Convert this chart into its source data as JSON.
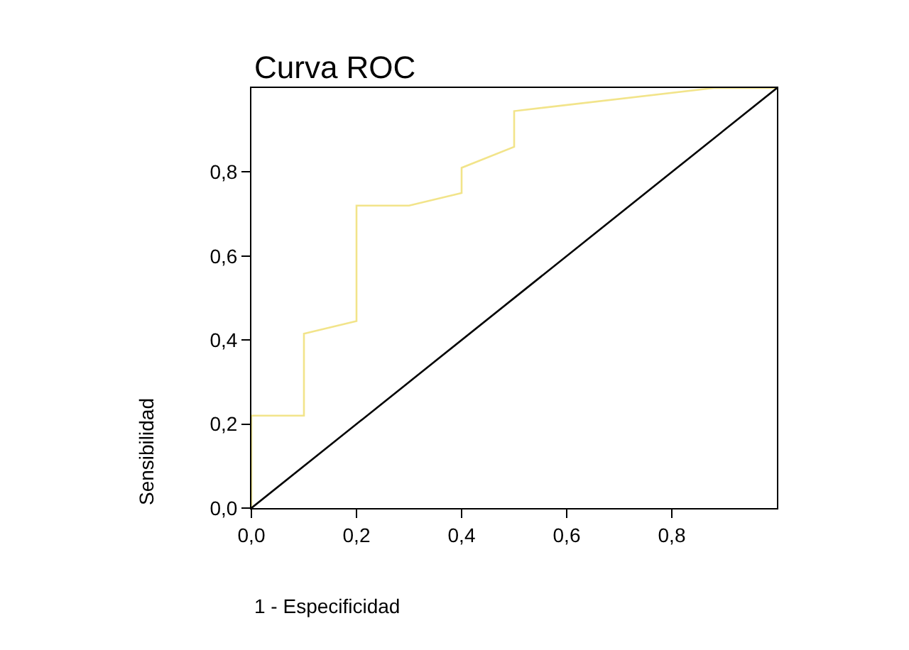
{
  "chart_data": {
    "type": "line",
    "title": "Curva ROC",
    "xlabel": "1 - Especificidad",
    "ylabel": "Sensibilidad",
    "xlim": [
      0,
      1
    ],
    "ylim": [
      0,
      1
    ],
    "xticks": [
      {
        "value": 0,
        "label": "0,0"
      },
      {
        "value": 0.2,
        "label": "0,2"
      },
      {
        "value": 0.4,
        "label": "0,4"
      },
      {
        "value": 0.6,
        "label": "0,6"
      },
      {
        "value": 0.8,
        "label": "0,8"
      }
    ],
    "yticks": [
      {
        "value": 0,
        "label": "0,0"
      },
      {
        "value": 0.2,
        "label": "0,2"
      },
      {
        "value": 0.4,
        "label": "0,4"
      },
      {
        "value": 0.6,
        "label": "0,6"
      },
      {
        "value": 0.8,
        "label": "0,8"
      }
    ],
    "series": [
      {
        "color": "#f2e48a",
        "x": [
          0,
          0,
          0.1,
          0.1,
          0.2,
          0.2,
          0.3,
          0.4,
          0.4,
          0.5,
          0.5,
          0.88,
          1
        ],
        "values": [
          0,
          0.22,
          0.22,
          0.415,
          0.445,
          0.72,
          0.72,
          0.75,
          0.81,
          0.86,
          0.945,
          1,
          1
        ]
      },
      {
        "color": "#000000",
        "x": [
          0,
          1
        ],
        "values": [
          0,
          1
        ]
      }
    ],
    "marker": "none",
    "line_style": "solid"
  }
}
